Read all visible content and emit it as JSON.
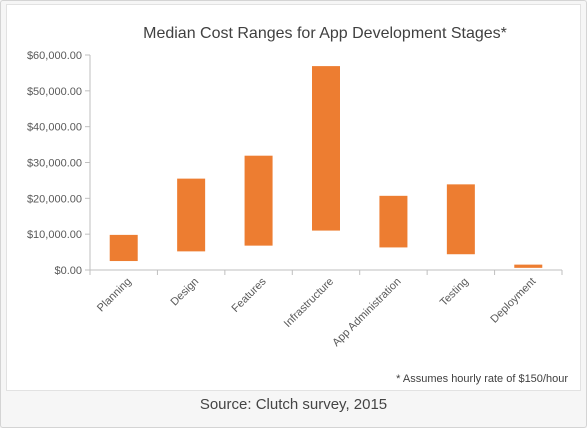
{
  "colors": {
    "bar": "#ed7d31",
    "axis": "#bfbfbf",
    "text": "#595959"
  },
  "chart_data": {
    "type": "bar",
    "subtype": "floating-range",
    "title": "Median Cost Ranges for App Development Stages*",
    "xlabel": "",
    "ylabel": "",
    "ylim": [
      0,
      60000
    ],
    "yticks": [
      0,
      10000,
      20000,
      30000,
      40000,
      50000,
      60000
    ],
    "ytick_labels": [
      "$0.00",
      "$10,000.00",
      "$20,000.00",
      "$30,000.00",
      "$40,000.00",
      "$50,000.00",
      "$60,000.00"
    ],
    "categories": [
      "Planning",
      "Design",
      "Features",
      "Infrastructure",
      "App Administration",
      "Testing",
      "Deployment"
    ],
    "low": [
      2500,
      5200,
      6800,
      11000,
      6300,
      4400,
      600
    ],
    "high": [
      9800,
      25500,
      31900,
      56900,
      20700,
      23900,
      1500
    ],
    "grid": false,
    "legend": "none",
    "footnote": "* Assumes hourly rate of $150/hour"
  },
  "caption": "Source: Clutch survey, 2015"
}
